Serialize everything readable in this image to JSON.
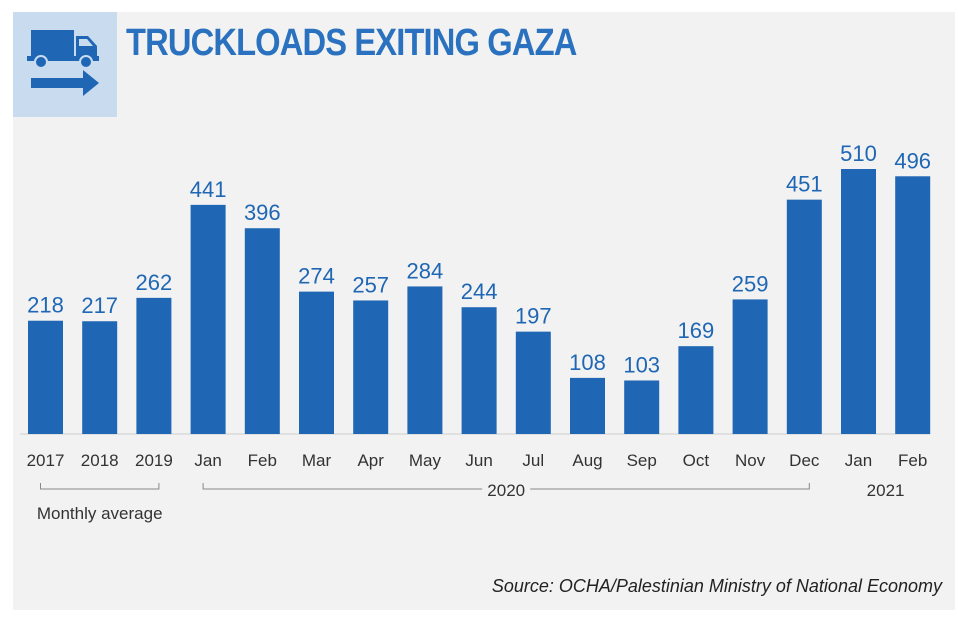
{
  "title": "TRUCKLOADS EXITING GAZA",
  "source": "Source: OCHA/Palestinian Ministry of National Economy",
  "icon": "truck-arrow-icon",
  "colors": {
    "bar": "#1f67b4",
    "title": "#2a72bf",
    "icon_bg": "#c9dcef",
    "panel": "#f2f2f2"
  },
  "chart_data": {
    "type": "bar",
    "title": "TRUCKLOADS EXITING GAZA",
    "categories": [
      "2017",
      "2018",
      "2019",
      "Jan",
      "Feb",
      "Mar",
      "Apr",
      "May",
      "Jun",
      "Jul",
      "Aug",
      "Sep",
      "Oct",
      "Nov",
      "Dec",
      "Jan",
      "Feb"
    ],
    "values": [
      218,
      217,
      262,
      441,
      396,
      274,
      257,
      284,
      244,
      197,
      108,
      103,
      169,
      259,
      451,
      510,
      496
    ],
    "groups": [
      {
        "label": "Monthly average",
        "from": 0,
        "to": 2
      },
      {
        "label": "2020",
        "from": 3,
        "to": 14
      },
      {
        "label": "2021",
        "from": 15,
        "to": 16
      }
    ],
    "ylim": [
      0,
      510
    ],
    "grid": false,
    "legend": "none",
    "xlabel": "",
    "ylabel": ""
  }
}
